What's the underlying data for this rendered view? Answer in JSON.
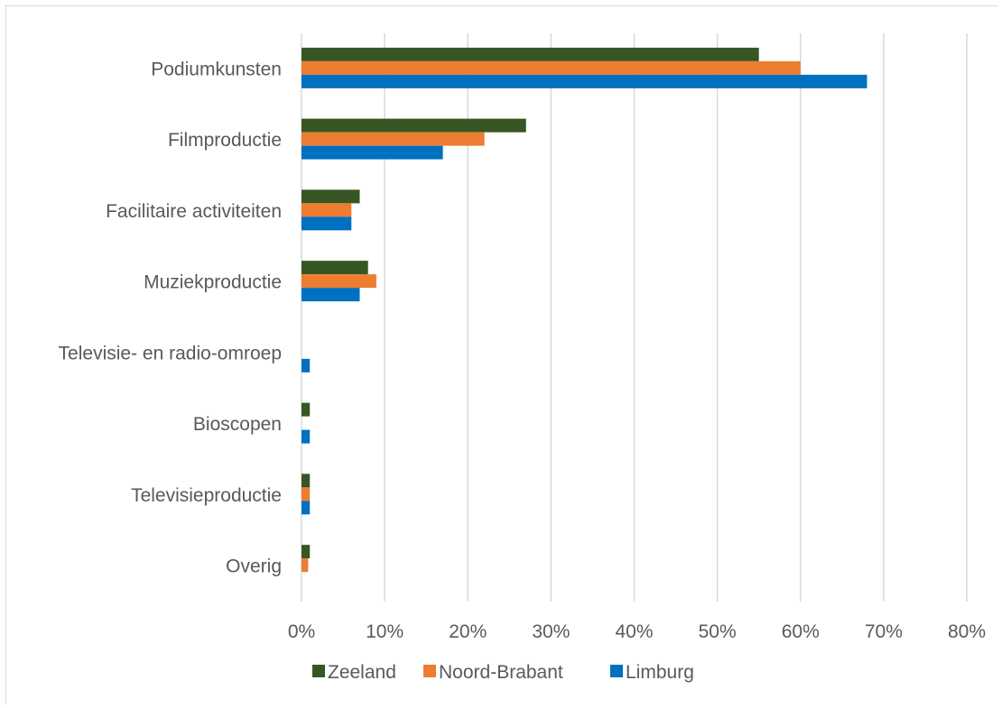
{
  "chart_data": {
    "type": "bar",
    "orientation": "horizontal",
    "title": "",
    "xlabel": "",
    "ylabel": "",
    "categories": [
      "Podiumkunsten",
      "Filmproductie",
      "Facilitaire activiteiten",
      "Muziekproductie",
      "Televisie- en radio-omroep",
      "Bioscopen",
      "Televisieproductie",
      "Overig"
    ],
    "series": [
      {
        "name": "Zeeland",
        "color": "#375623",
        "values": [
          55,
          27,
          7,
          8,
          0,
          1,
          1,
          1
        ]
      },
      {
        "name": "Noord-Brabant",
        "color": "#ED7D31",
        "values": [
          60,
          22,
          6,
          9,
          0,
          0,
          1,
          0.8
        ]
      },
      {
        "name": "Limburg",
        "color": "#0070C0",
        "values": [
          68,
          17,
          6,
          7,
          1,
          1,
          1,
          0
        ]
      }
    ],
    "xlim": [
      0,
      80
    ],
    "xticks": [
      0,
      10,
      20,
      30,
      40,
      50,
      60,
      70,
      80
    ],
    "tick_suffix": "%",
    "grid": true,
    "legend_position": "bottom"
  }
}
